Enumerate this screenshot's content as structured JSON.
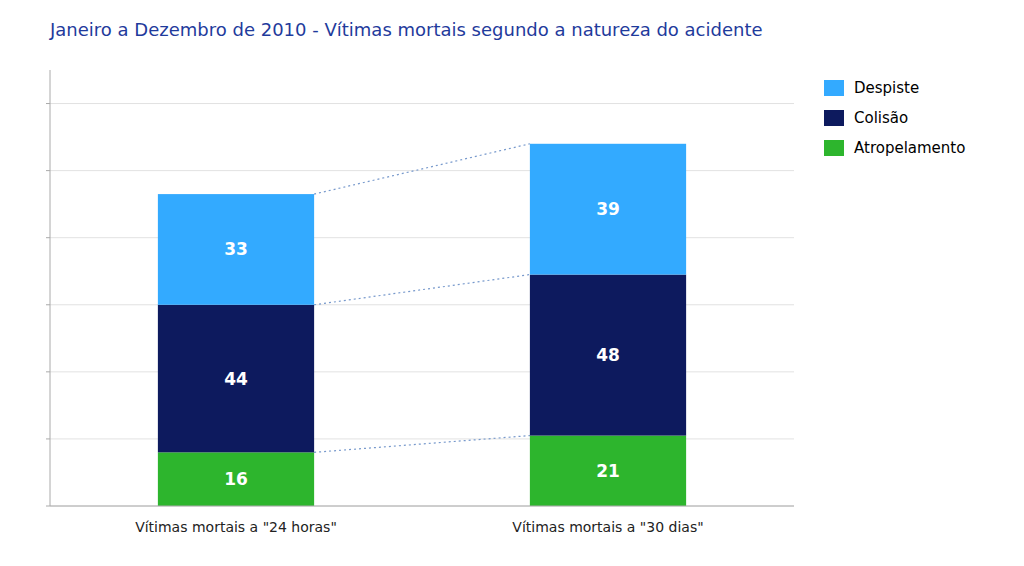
{
  "chart_data": {
    "type": "bar",
    "title": "Janeiro a Dezembro de 2010 - Vítimas mortais segundo a natureza do acidente",
    "categories": [
      "Vítimas mortais a \"24 horas\"",
      "Vítimas mortais a \"30 dias\""
    ],
    "series": [
      {
        "name": "Atropelamento",
        "color": "#2db52d",
        "values": [
          16,
          21
        ]
      },
      {
        "name": "Colisão",
        "color": "#0d1a5e",
        "values": [
          44,
          48
        ]
      },
      {
        "name": "Despiste",
        "color": "#33aaff",
        "values": [
          33,
          39
        ]
      }
    ],
    "stacked": true,
    "data_labels": true,
    "ylim": [
      0,
      130
    ],
    "yticks": [
      0,
      20,
      40,
      60,
      80,
      100,
      120
    ],
    "grid": true,
    "tick_labels": "x",
    "legend": "upper right"
  }
}
